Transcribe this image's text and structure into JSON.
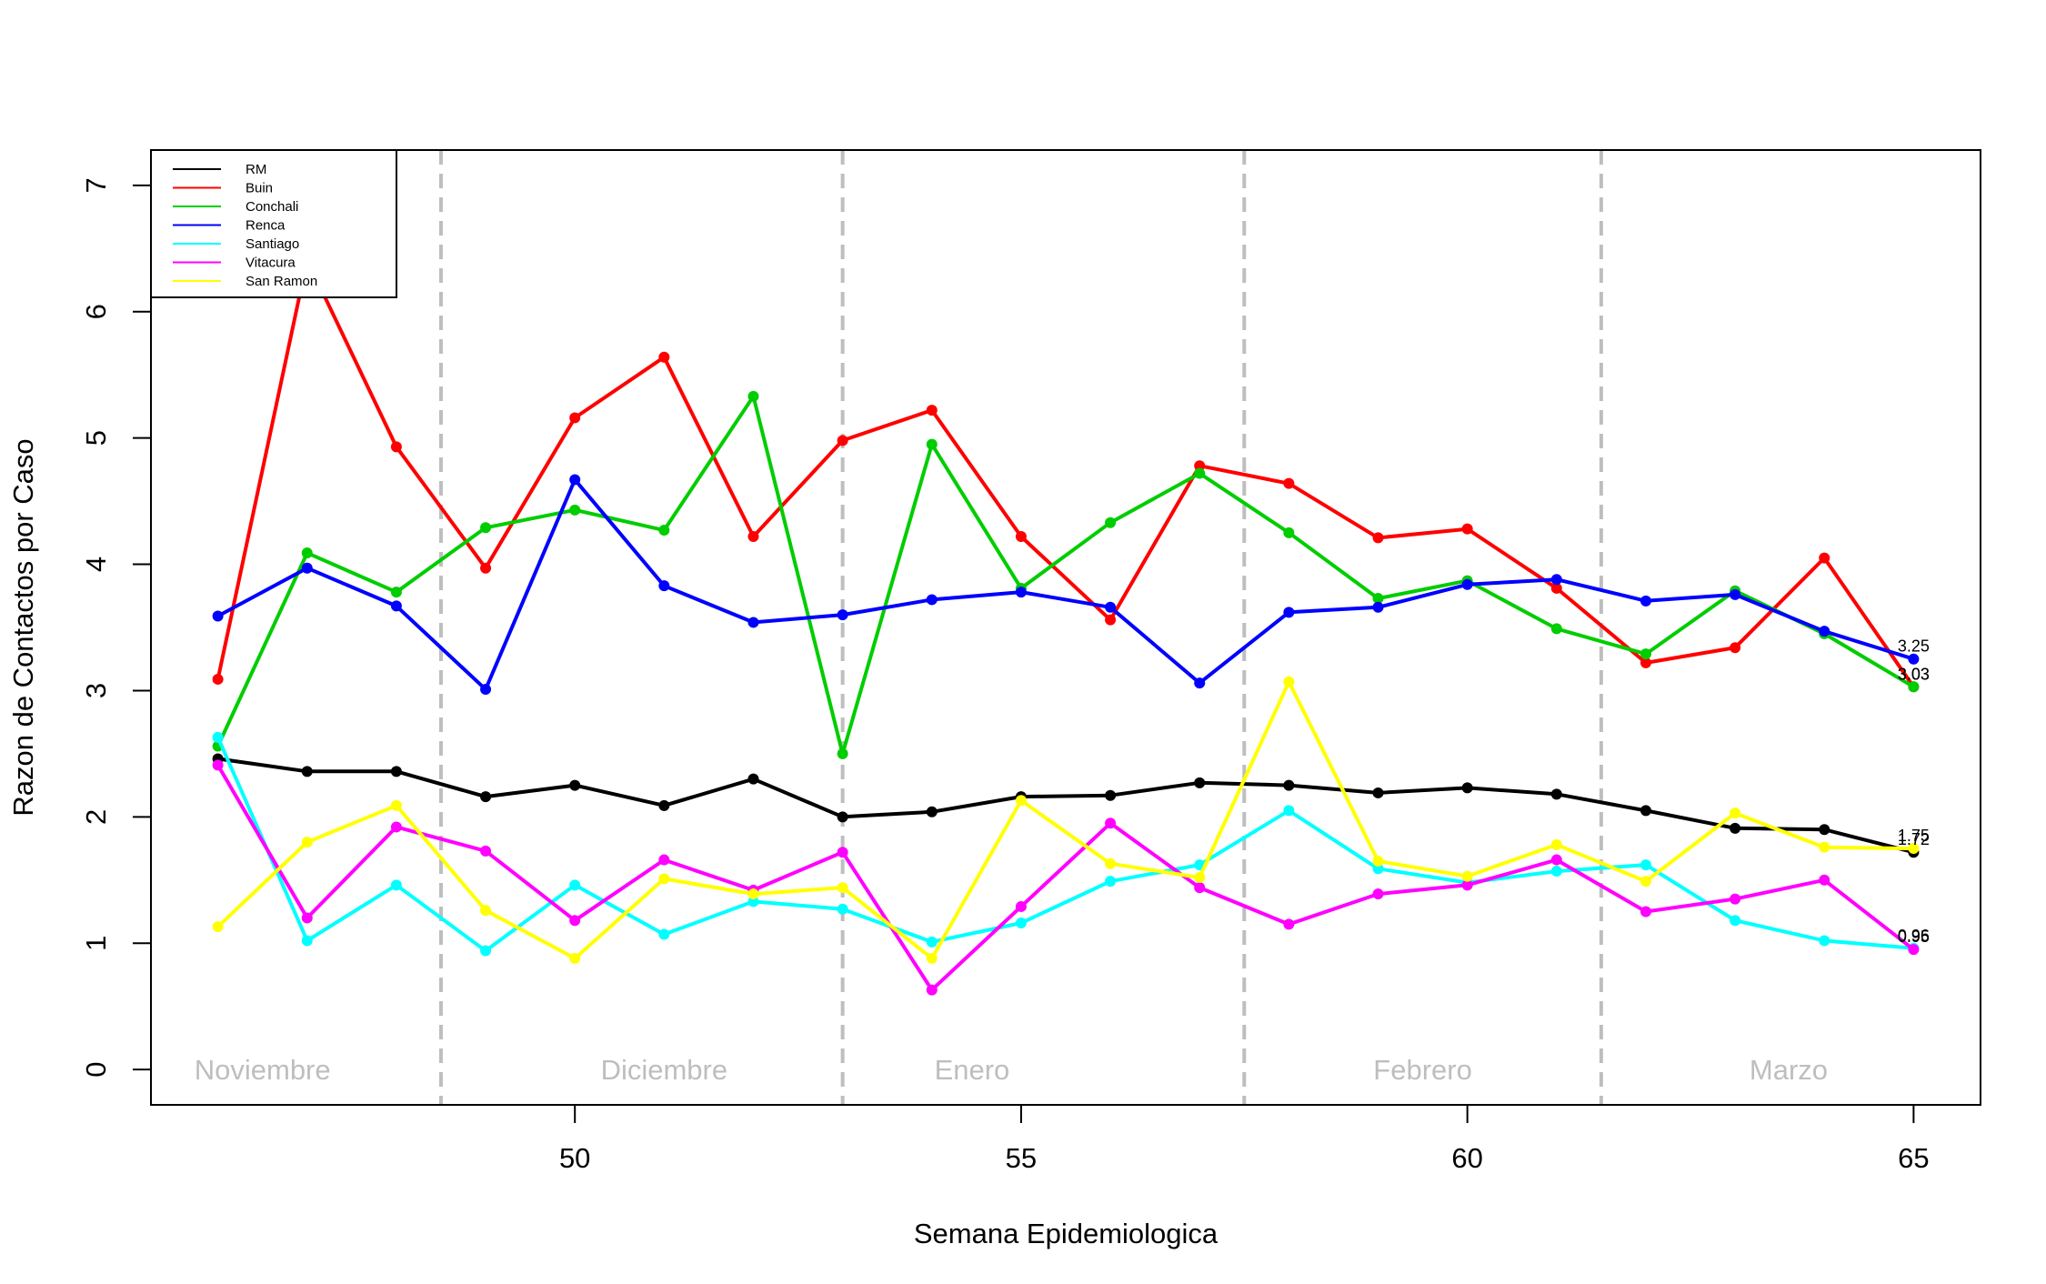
{
  "chart_data": {
    "type": "line",
    "xlabel": "Semana Epidemiologica",
    "ylabel": "Razon de Contactos por Caso",
    "xlim": [
      45.25,
      65.75
    ],
    "ylim": [
      -0.28,
      7.28
    ],
    "x_ticks": [
      50,
      55,
      60,
      65
    ],
    "y_ticks": [
      0,
      1,
      2,
      3,
      4,
      5,
      6,
      7
    ],
    "grid": false,
    "legend_position": "top-left",
    "x": [
      46,
      47,
      48,
      49,
      50,
      51,
      52,
      53,
      54,
      55,
      56,
      57,
      58,
      59,
      60,
      61,
      62,
      63,
      64,
      65
    ],
    "month_dividers": [
      48.5,
      53,
      57.5,
      61.5
    ],
    "month_labels": [
      {
        "label": "Noviembre",
        "x": 46.5
      },
      {
        "label": "Diciembre",
        "x": 51
      },
      {
        "label": "Enero",
        "x": 54.45
      },
      {
        "label": "Febrero",
        "x": 59.5
      },
      {
        "label": "Marzo",
        "x": 63.6
      }
    ],
    "series": [
      {
        "name": "RM",
        "color": "#000000",
        "values": [
          2.46,
          2.36,
          2.36,
          2.16,
          2.25,
          2.09,
          2.3,
          2.0,
          2.04,
          2.16,
          2.17,
          2.27,
          2.25,
          2.19,
          2.23,
          2.18,
          2.05,
          1.91,
          1.9,
          1.72
        ]
      },
      {
        "name": "Buin",
        "color": "#ff0000",
        "values": [
          3.09,
          6.41,
          4.93,
          3.97,
          5.16,
          5.64,
          4.22,
          4.98,
          5.22,
          4.22,
          3.56,
          4.78,
          4.64,
          4.21,
          4.28,
          3.81,
          3.22,
          3.34,
          4.05,
          3.03
        ]
      },
      {
        "name": "Conchali",
        "color": "#00cd00",
        "values": [
          2.56,
          4.09,
          3.78,
          4.29,
          4.43,
          4.27,
          5.33,
          2.5,
          4.95,
          3.81,
          4.33,
          4.72,
          4.25,
          3.73,
          3.87,
          3.49,
          3.29,
          3.79,
          3.45,
          3.03
        ]
      },
      {
        "name": "Renca",
        "color": "#0000ff",
        "values": [
          3.59,
          3.97,
          3.67,
          3.01,
          4.67,
          3.83,
          3.54,
          3.6,
          3.72,
          3.78,
          3.66,
          3.06,
          3.62,
          3.66,
          3.84,
          3.88,
          3.71,
          3.76,
          3.47,
          3.25
        ]
      },
      {
        "name": "Santiago",
        "color": "#00ffff",
        "values": [
          2.63,
          1.02,
          1.46,
          0.94,
          1.46,
          1.07,
          1.33,
          1.27,
          1.01,
          1.16,
          1.49,
          1.62,
          2.05,
          1.59,
          1.48,
          1.57,
          1.62,
          1.18,
          1.02,
          0.96
        ]
      },
      {
        "name": "Vitacura",
        "color": "#ff00ff",
        "values": [
          2.41,
          1.2,
          1.92,
          1.73,
          1.18,
          1.66,
          1.42,
          1.72,
          0.63,
          1.29,
          1.95,
          1.44,
          1.15,
          1.39,
          1.46,
          1.66,
          1.25,
          1.35,
          1.5,
          0.95
        ]
      },
      {
        "name": "San Ramon",
        "color": "#ffff00",
        "values": [
          1.13,
          1.8,
          2.09,
          1.26,
          0.88,
          1.51,
          1.39,
          1.44,
          0.88,
          2.13,
          1.63,
          1.52,
          3.07,
          1.65,
          1.53,
          1.78,
          1.49,
          2.03,
          1.76,
          1.75
        ]
      }
    ],
    "end_labels": [
      "3.25",
      "3.03",
      "3.03",
      "1.75",
      "1.72",
      "0.96",
      "0.95"
    ]
  }
}
